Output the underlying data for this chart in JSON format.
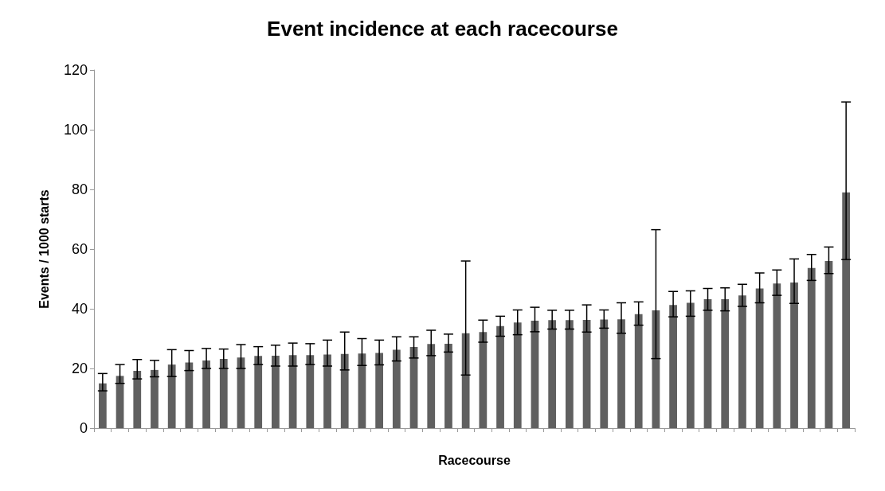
{
  "chart_data": {
    "type": "bar",
    "title": "Event incidence at each racecourse",
    "xlabel": "Racecourse",
    "ylabel": "Events / 1000 starts",
    "categories": [
      null,
      null,
      null,
      null,
      null,
      null,
      null,
      null,
      null,
      null,
      null,
      null,
      null,
      null,
      null,
      null,
      null,
      null,
      null,
      null,
      null,
      null,
      null,
      null,
      null,
      null,
      null,
      null,
      null,
      null,
      null,
      null,
      null,
      null,
      null,
      null,
      null,
      null,
      null,
      null,
      null,
      null,
      null,
      null
    ],
    "values": [
      15,
      17.5,
      19.2,
      19.5,
      21.3,
      22,
      22.7,
      23.2,
      23.7,
      24.2,
      24.3,
      24.5,
      24.5,
      24.7,
      24.9,
      25,
      25.2,
      26.3,
      27.2,
      28.2,
      28.3,
      31.8,
      32.2,
      34.2,
      35.4,
      36,
      36.2,
      36.2,
      36.3,
      36.4,
      36.5,
      38.2,
      39.5,
      41.3,
      42,
      43.2,
      43.2,
      44.5,
      46.8,
      48.5,
      48.8,
      53.7,
      56,
      79
    ],
    "errors": [
      [
        12.5,
        18.3
      ],
      [
        15,
        21.3
      ],
      [
        16.5,
        23
      ],
      [
        17.2,
        22.7
      ],
      [
        17.3,
        26.3
      ],
      [
        19.3,
        26
      ],
      [
        20,
        26.7
      ],
      [
        20,
        26.5
      ],
      [
        20,
        28
      ],
      [
        21.3,
        27.3
      ],
      [
        20.8,
        27.8
      ],
      [
        20.8,
        28.5
      ],
      [
        21.3,
        28.3
      ],
      [
        20.8,
        29.5
      ],
      [
        19.5,
        32.2
      ],
      [
        21,
        30
      ],
      [
        21.2,
        29.5
      ],
      [
        22.5,
        30.6
      ],
      [
        23.5,
        30.6
      ],
      [
        24.3,
        32.8
      ],
      [
        25.5,
        31.5
      ],
      [
        17.8,
        56
      ],
      [
        28.8,
        36.2
      ],
      [
        30.8,
        37.5
      ],
      [
        31.3,
        39.6
      ],
      [
        32.3,
        40.5
      ],
      [
        33.2,
        39.5
      ],
      [
        33.2,
        39.5
      ],
      [
        32.2,
        41.3
      ],
      [
        33.5,
        39.6
      ],
      [
        31.8,
        42
      ],
      [
        34.5,
        42.3
      ],
      [
        23.3,
        66.5
      ],
      [
        37.3,
        45.8
      ],
      [
        37.5,
        46
      ],
      [
        39.5,
        46.8
      ],
      [
        39.3,
        47
      ],
      [
        40.8,
        48.2
      ],
      [
        42,
        52
      ],
      [
        44.5,
        53
      ],
      [
        41.8,
        56.7
      ],
      [
        49.5,
        58.2
      ],
      [
        51.8,
        60.7
      ],
      [
        56.5,
        109.3
      ]
    ],
    "color": "#606060",
    "ylim": [
      0,
      120
    ],
    "yticks": [
      0,
      20,
      40,
      60,
      80,
      100,
      120
    ],
    "grid": false
  }
}
